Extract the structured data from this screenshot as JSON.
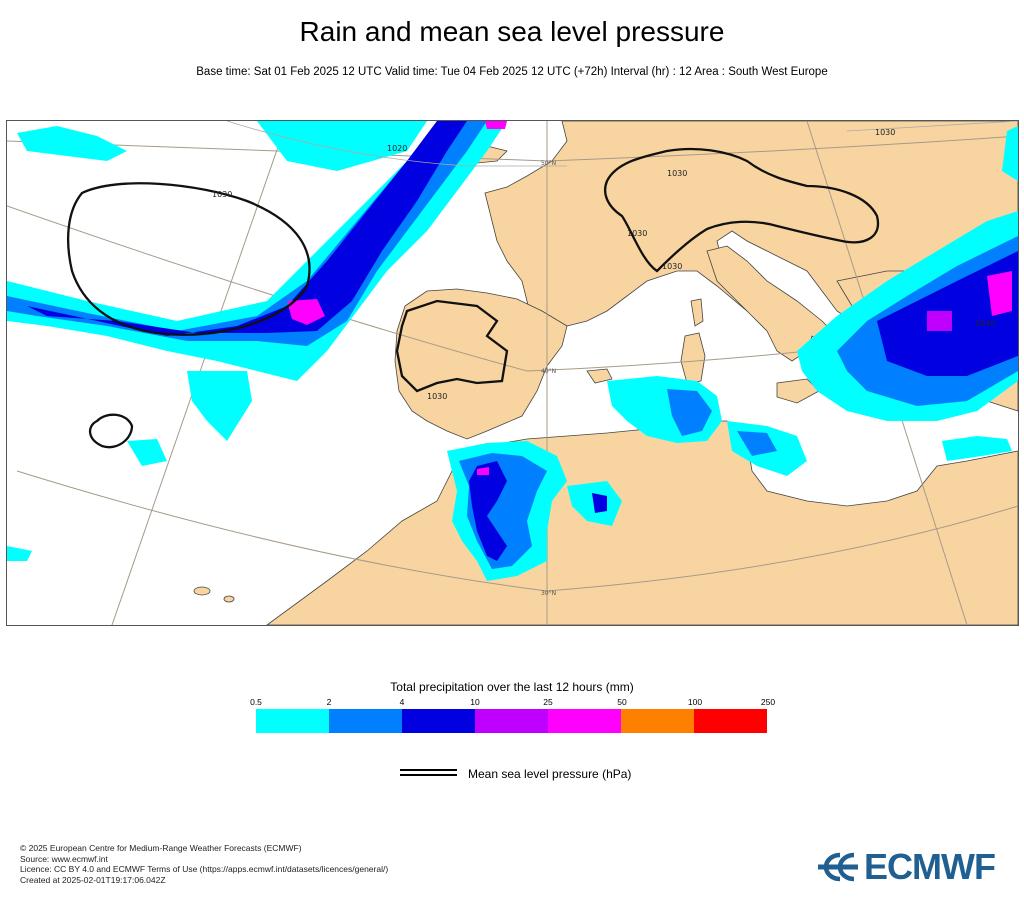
{
  "title": "Rain and mean sea level pressure",
  "subtitle": "Base time: Sat 01 Feb 2025 12 UTC Valid time: Tue 04 Feb 2025 12 UTC (+72h) Interval (hr) : 12 Area : South West Europe",
  "map": {
    "isobar_labels": [
      "1020",
      "1030",
      "1030",
      "1030",
      "1030",
      "1030",
      "1030",
      "1030"
    ],
    "lat_labels": [
      "50°N",
      "40°N",
      "30°N"
    ],
    "colors": {
      "land": "#f8d5a0",
      "sea": "#ffffff",
      "isobar": "#111111",
      "graticule": "#a69a8a"
    }
  },
  "legend": {
    "title": "Total precipitation over the last 12 hours (mm)",
    "ticks": [
      "0.5",
      "2",
      "4",
      "10",
      "25",
      "50",
      "100",
      "250"
    ],
    "colors": [
      "#00ffff",
      "#0080ff",
      "#0000e0",
      "#c000ff",
      "#ff00ff",
      "#ff8000",
      "#ff0000"
    ]
  },
  "mslp_label": "Mean sea level pressure (hPa)",
  "footer": [
    "© 2025 European Centre for Medium-Range Weather Forecasts (ECMWF)",
    "Source: www.ecmwf.int",
    "Licence: CC BY 4.0 and ECMWF Terms of Use (https://apps.ecmwf.int/datasets/licences/general/)",
    "Created at 2025-02-01T19:17:06.042Z"
  ],
  "logo": {
    "text": "ECMWF",
    "color": "#1f5f91"
  }
}
